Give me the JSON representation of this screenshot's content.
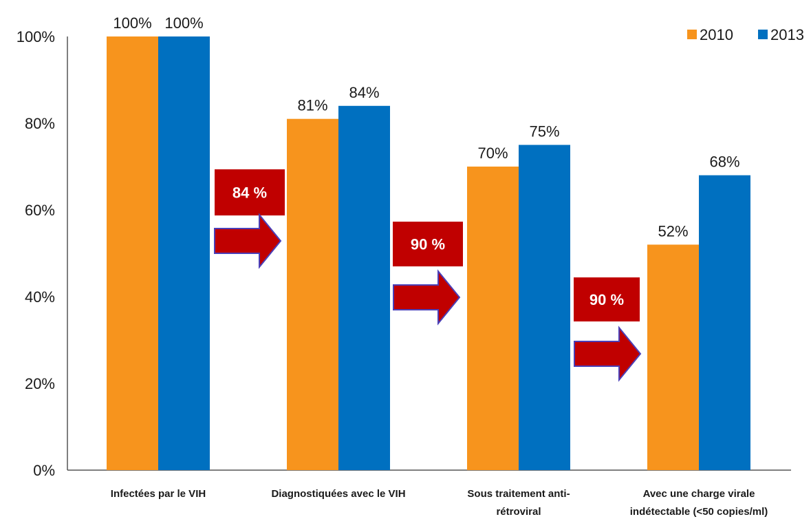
{
  "chart_data": {
    "type": "bar",
    "title": "",
    "xlabel": "",
    "ylabel": "",
    "ylim": [
      0,
      100
    ],
    "yticks": [
      "0%",
      "20%",
      "40%",
      "60%",
      "80%",
      "100%"
    ],
    "categories": [
      [
        "Infectées par le VIH"
      ],
      [
        "Diagnostiquées avec le VIH"
      ],
      [
        "Sous traitement anti-",
        "rétroviral"
      ],
      [
        "Avec une charge virale",
        "indétectable (<50 copies/ml)"
      ]
    ],
    "series": [
      {
        "name": "2010",
        "color": "#F7941D",
        "values": [
          100,
          81,
          70,
          52
        ],
        "labels": [
          "100%",
          "81%",
          "70%",
          "52%"
        ]
      },
      {
        "name": "2013",
        "color": "#0070C0",
        "values": [
          100,
          84,
          75,
          68
        ],
        "labels": [
          "100%",
          "84%",
          "75%",
          "68%"
        ]
      }
    ],
    "legend": "top-right",
    "grid": false,
    "conversion_rates": [
      {
        "label": "84 %",
        "between": [
          0,
          1
        ]
      },
      {
        "label": "90 %",
        "between": [
          1,
          2
        ]
      },
      {
        "label": "90 %",
        "between": [
          2,
          3
        ]
      }
    ],
    "conversion_color": "#C00000"
  }
}
